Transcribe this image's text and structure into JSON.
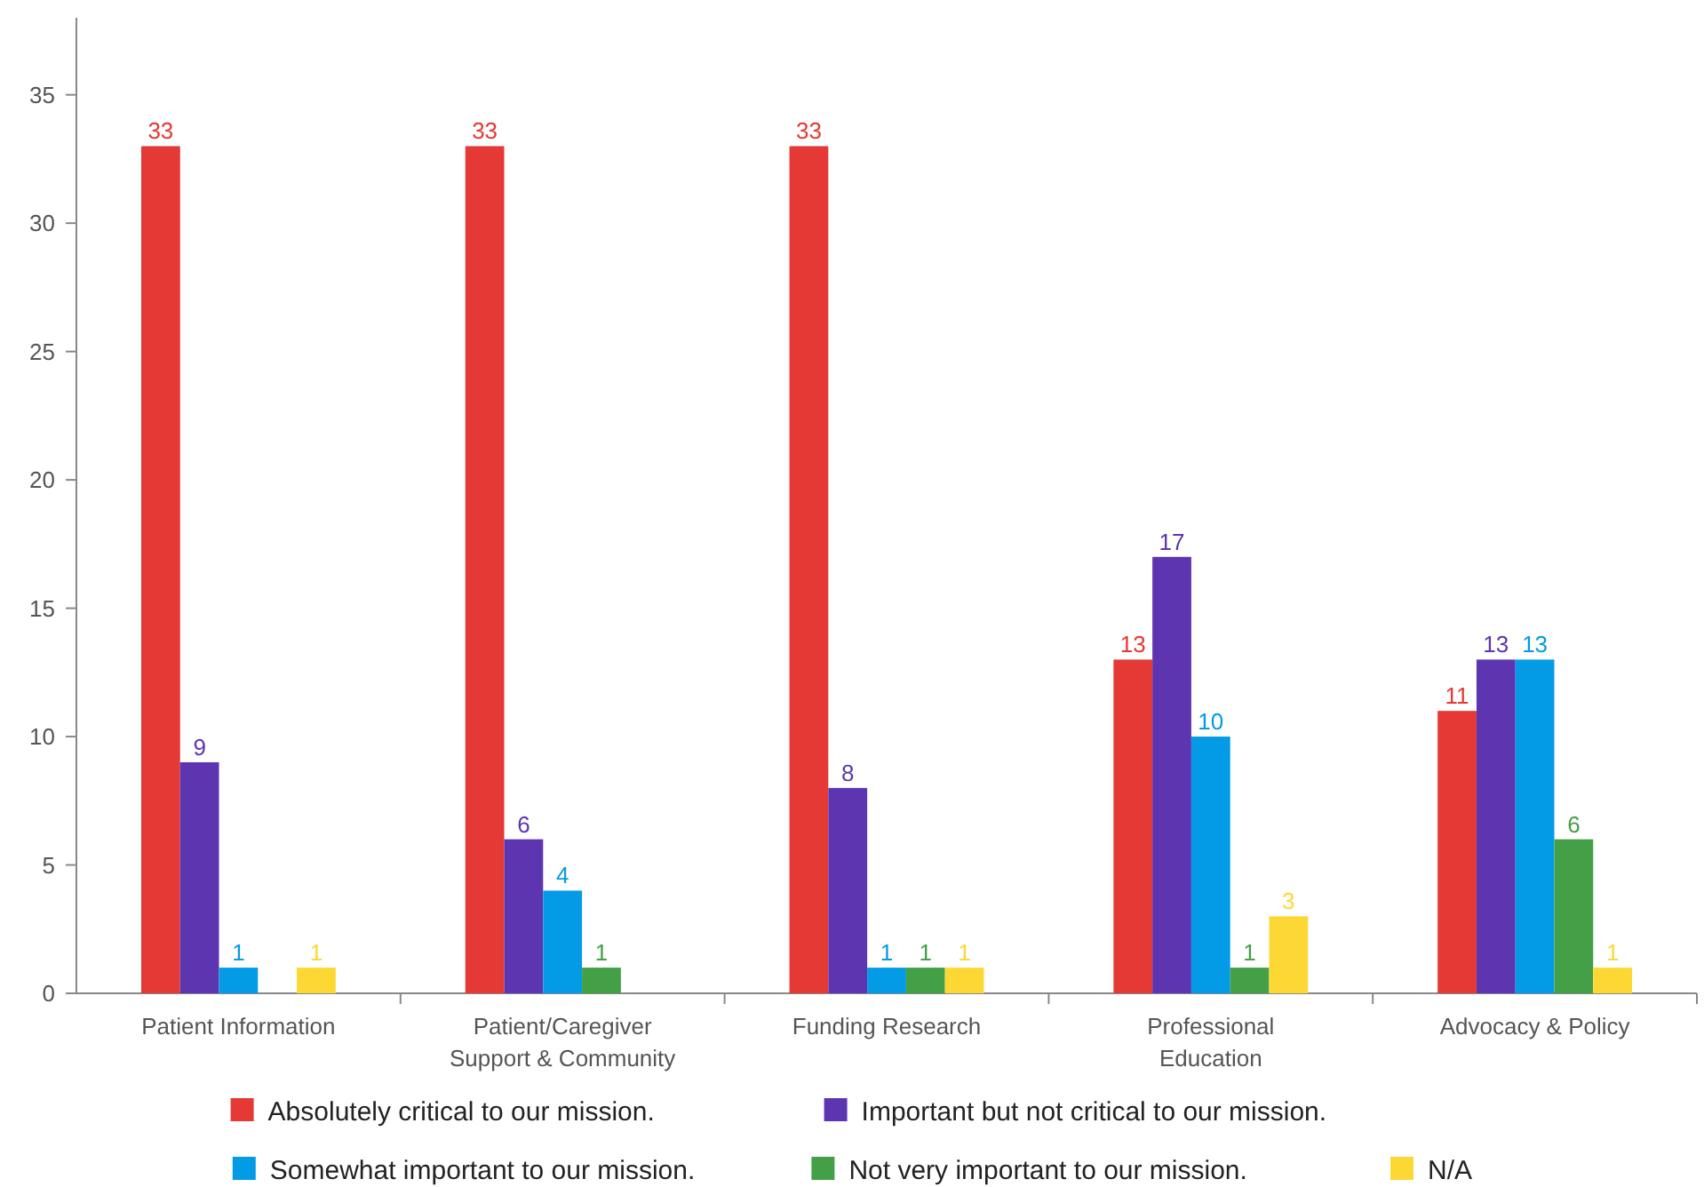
{
  "chart_data": {
    "type": "bar",
    "categories": [
      "Patient Information",
      "Patient/Caregiver Support & Community",
      "Funding Research",
      "Professional Education",
      "Advocacy & Policy"
    ],
    "series": [
      {
        "name": "Absolutely critical to our mission.",
        "color": "#e53935",
        "values": [
          33,
          33,
          33,
          13,
          11
        ]
      },
      {
        "name": "Important but not critical to our mission.",
        "color": "#5e35b1",
        "values": [
          9,
          6,
          8,
          17,
          13
        ]
      },
      {
        "name": "Somewhat important to our mission.",
        "color": "#039be5",
        "values": [
          1,
          4,
          1,
          10,
          13
        ]
      },
      {
        "name": "Not very important to our mission.",
        "color": "#43a047",
        "values": [
          null,
          1,
          1,
          1,
          6
        ]
      },
      {
        "name": "N/A",
        "color": "#fdd835",
        "values": [
          1,
          null,
          1,
          3,
          1
        ]
      }
    ],
    "ylim": [
      0,
      38
    ],
    "yticks": [
      0,
      5,
      10,
      15,
      20,
      25,
      30,
      35
    ],
    "data_labels": true,
    "legend": "bottom",
    "grid": false
  }
}
